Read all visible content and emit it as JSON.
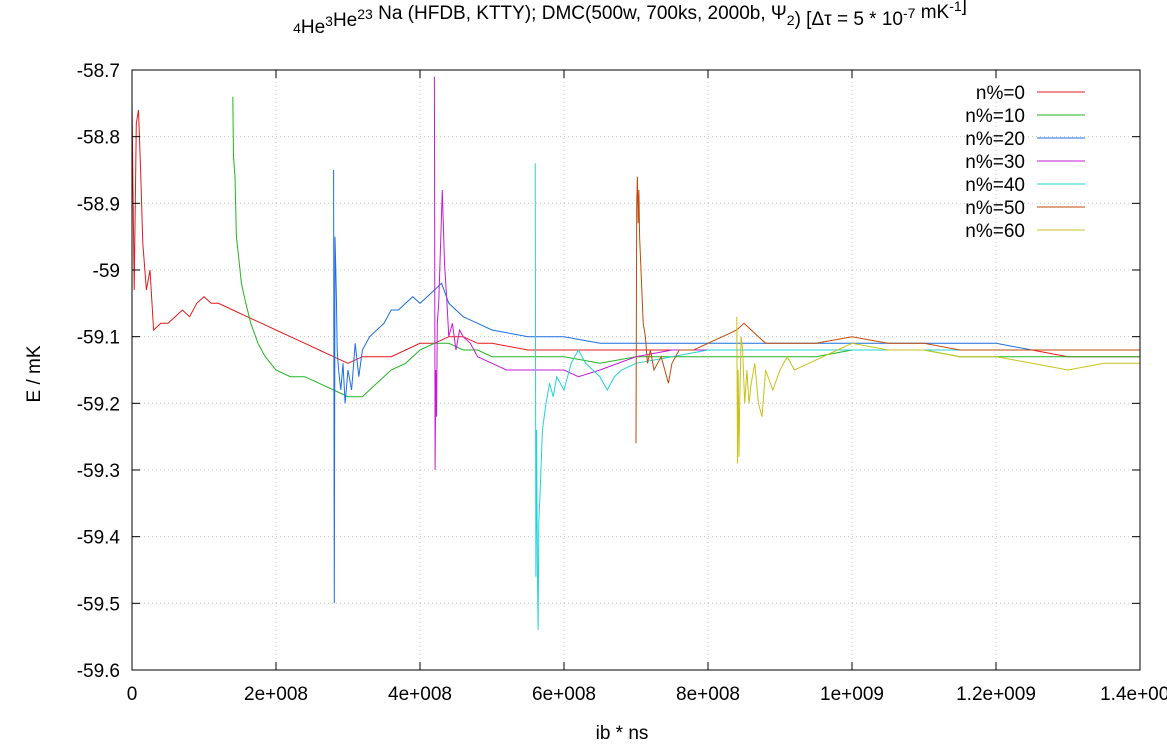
{
  "chart_data": {
    "type": "line",
    "title": {
      "parts": [
        {
          "text": "4",
          "sup": true
        },
        {
          "text": "He"
        },
        {
          "text": "3",
          "sup": true
        },
        {
          "text": "He"
        },
        {
          "text": "23",
          "sup": true
        },
        {
          "text": " Na (HFDB, KTTY); DMC(500w, 700ks, 2000b, Ψ"
        },
        {
          "text": "2",
          "sub": true
        },
        {
          "text": ") [Δτ = 5 * 10"
        },
        {
          "text": "-7",
          "sup": true
        },
        {
          "text": " mK"
        },
        {
          "text": "-1",
          "sup": true
        },
        {
          "text": "]"
        }
      ]
    },
    "xlabel": "ib * ns",
    "ylabel": "E / mK",
    "xlim": [
      0,
      1400000000
    ],
    "ylim": [
      -59.6,
      -58.7
    ],
    "xticks": [
      {
        "value": 0,
        "label": "0"
      },
      {
        "value": 200000000,
        "label": "2e+008"
      },
      {
        "value": 400000000,
        "label": "4e+008"
      },
      {
        "value": 600000000,
        "label": "6e+008"
      },
      {
        "value": 800000000,
        "label": "8e+008"
      },
      {
        "value": 1000000000,
        "label": "1e+009"
      },
      {
        "value": 1200000000,
        "label": "1.2e+009"
      },
      {
        "value": 1400000000,
        "label": "1.4e+009"
      }
    ],
    "yticks": [
      {
        "value": -59.6,
        "label": "-59.6"
      },
      {
        "value": -59.5,
        "label": "-59.5"
      },
      {
        "value": -59.4,
        "label": "-59.4"
      },
      {
        "value": -59.3,
        "label": "-59.3"
      },
      {
        "value": -59.2,
        "label": "-59.2"
      },
      {
        "value": -59.1,
        "label": "-59.1"
      },
      {
        "value": -59.0,
        "label": "-59"
      },
      {
        "value": -58.9,
        "label": "-58.9"
      },
      {
        "value": -58.8,
        "label": "-58.8"
      },
      {
        "value": -58.7,
        "label": "-58.7"
      }
    ],
    "grid": true,
    "legend_position": "top-right",
    "series": [
      {
        "name": "n%=0",
        "color": "#e41a1c",
        "x": [
          0,
          3000000,
          6000000,
          9000000,
          12000000,
          15000000,
          20000000,
          25000000,
          30000000,
          40000000,
          50000000,
          60000000,
          70000000,
          80000000,
          90000000,
          100000000,
          110000000,
          120000000,
          140000000,
          160000000,
          180000000,
          200000000,
          220000000,
          240000000,
          260000000,
          280000000,
          300000000,
          320000000,
          340000000,
          360000000,
          380000000,
          400000000,
          420000000,
          440000000,
          460000000,
          480000000,
          500000000,
          550000000,
          600000000,
          650000000,
          700000000,
          750000000,
          800000000,
          850000000,
          900000000,
          950000000,
          1000000000,
          1050000000,
          1100000000,
          1150000000,
          1200000000,
          1250000000,
          1300000000,
          1350000000,
          1400000000
        ],
        "y": [
          -58.75,
          -59.03,
          -58.78,
          -58.76,
          -58.85,
          -58.96,
          -59.03,
          -59.0,
          -59.09,
          -59.08,
          -59.08,
          -59.07,
          -59.06,
          -59.07,
          -59.05,
          -59.04,
          -59.05,
          -59.05,
          -59.06,
          -59.07,
          -59.08,
          -59.09,
          -59.1,
          -59.11,
          -59.12,
          -59.13,
          -59.14,
          -59.13,
          -59.13,
          -59.13,
          -59.12,
          -59.11,
          -59.11,
          -59.1,
          -59.1,
          -59.11,
          -59.11,
          -59.12,
          -59.12,
          -59.12,
          -59.12,
          -59.12,
          -59.12,
          -59.12,
          -59.12,
          -59.12,
          -59.12,
          -59.12,
          -59.12,
          -59.12,
          -59.12,
          -59.12,
          -59.13,
          -59.13,
          -59.13
        ]
      },
      {
        "name": "n%=10",
        "color": "#22b522",
        "x": [
          140000000,
          141000000,
          143000000,
          145000000,
          148000000,
          152000000,
          158000000,
          165000000,
          175000000,
          185000000,
          200000000,
          220000000,
          240000000,
          260000000,
          280000000,
          300000000,
          320000000,
          340000000,
          360000000,
          380000000,
          400000000,
          420000000,
          440000000,
          460000000,
          480000000,
          500000000,
          550000000,
          600000000,
          650000000,
          700000000,
          750000000,
          800000000,
          850000000,
          900000000,
          950000000,
          1000000000,
          1050000000,
          1100000000,
          1150000000,
          1200000000,
          1250000000,
          1300000000,
          1350000000,
          1400000000
        ],
        "y": [
          -58.74,
          -58.83,
          -58.86,
          -58.95,
          -58.98,
          -59.02,
          -59.05,
          -59.08,
          -59.11,
          -59.13,
          -59.15,
          -59.16,
          -59.16,
          -59.17,
          -59.18,
          -59.19,
          -59.19,
          -59.17,
          -59.15,
          -59.14,
          -59.12,
          -59.11,
          -59.11,
          -59.12,
          -59.12,
          -59.13,
          -59.13,
          -59.13,
          -59.14,
          -59.13,
          -59.13,
          -59.13,
          -59.13,
          -59.13,
          -59.13,
          -59.12,
          -59.12,
          -59.12,
          -59.13,
          -59.13,
          -59.13,
          -59.13,
          -59.13,
          -59.13
        ]
      },
      {
        "name": "n%=20",
        "color": "#1c6fe0",
        "x": [
          280000000,
          281000000,
          282000000,
          283000000,
          284000000,
          285000000,
          287000000,
          290000000,
          293000000,
          296000000,
          300000000,
          305000000,
          310000000,
          315000000,
          320000000,
          330000000,
          340000000,
          350000000,
          360000000,
          370000000,
          380000000,
          390000000,
          400000000,
          410000000,
          420000000,
          430000000,
          440000000,
          460000000,
          480000000,
          500000000,
          550000000,
          600000000,
          650000000,
          700000000,
          750000000,
          800000000,
          850000000,
          900000000,
          950000000,
          1000000000,
          1050000000,
          1100000000,
          1150000000,
          1200000000,
          1250000000,
          1300000000,
          1350000000,
          1400000000
        ],
        "y": [
          -58.85,
          -59.5,
          -58.95,
          -59.0,
          -59.05,
          -59.12,
          -59.15,
          -59.18,
          -59.14,
          -59.2,
          -59.15,
          -59.18,
          -59.11,
          -59.16,
          -59.12,
          -59.1,
          -59.09,
          -59.08,
          -59.06,
          -59.06,
          -59.05,
          -59.04,
          -59.05,
          -59.04,
          -59.03,
          -59.02,
          -59.05,
          -59.07,
          -59.08,
          -59.09,
          -59.1,
          -59.1,
          -59.11,
          -59.11,
          -59.11,
          -59.11,
          -59.11,
          -59.11,
          -59.11,
          -59.11,
          -59.11,
          -59.11,
          -59.11,
          -59.11,
          -59.12,
          -59.12,
          -59.12,
          -59.12
        ]
      },
      {
        "name": "n%=30",
        "color": "#c51bd6",
        "x": [
          420000000,
          421000000,
          422000000,
          423000000,
          424000000,
          426000000,
          428000000,
          431000000,
          434000000,
          437000000,
          440000000,
          445000000,
          450000000,
          455000000,
          460000000,
          470000000,
          480000000,
          500000000,
          520000000,
          540000000,
          560000000,
          580000000,
          600000000,
          620000000,
          650000000,
          700000000,
          750000000,
          800000000,
          850000000,
          900000000,
          950000000,
          1000000000,
          1050000000,
          1100000000,
          1150000000,
          1200000000,
          1250000000,
          1300000000,
          1350000000,
          1400000000
        ],
        "y": [
          -58.71,
          -59.3,
          -59.15,
          -59.22,
          -59.08,
          -59.05,
          -58.98,
          -58.88,
          -58.99,
          -59.04,
          -59.1,
          -59.08,
          -59.12,
          -59.09,
          -59.1,
          -59.11,
          -59.13,
          -59.14,
          -59.15,
          -59.15,
          -59.15,
          -59.15,
          -59.15,
          -59.16,
          -59.15,
          -59.13,
          -59.12,
          -59.12,
          -59.12,
          -59.12,
          -59.12,
          -59.12,
          -59.12,
          -59.12,
          -59.12,
          -59.12,
          -59.12,
          -59.12,
          -59.12,
          -59.12
        ]
      },
      {
        "name": "n%=40",
        "color": "#22d3d6",
        "x": [
          560000000,
          561000000,
          562000000,
          563000000,
          564000000,
          565000000,
          567000000,
          570000000,
          575000000,
          580000000,
          585000000,
          590000000,
          600000000,
          610000000,
          620000000,
          630000000,
          640000000,
          650000000,
          660000000,
          670000000,
          680000000,
          700000000,
          750000000,
          800000000,
          850000000,
          900000000,
          950000000,
          1000000000,
          1050000000,
          1100000000,
          1150000000,
          1200000000,
          1250000000,
          1300000000,
          1350000000,
          1400000000
        ],
        "y": [
          -58.84,
          -59.46,
          -59.24,
          -59.45,
          -59.54,
          -59.38,
          -59.33,
          -59.24,
          -59.2,
          -59.17,
          -59.19,
          -59.16,
          -59.18,
          -59.14,
          -59.12,
          -59.14,
          -59.15,
          -59.16,
          -59.18,
          -59.16,
          -59.15,
          -59.14,
          -59.13,
          -59.12,
          -59.12,
          -59.12,
          -59.12,
          -59.12,
          -59.12,
          -59.12,
          -59.12,
          -59.12,
          -59.12,
          -59.12,
          -59.12,
          -59.12
        ]
      },
      {
        "name": "n%=50",
        "color": "#c04a0a",
        "x": [
          700000000,
          701000000,
          702000000,
          703000000,
          704000000,
          705000000,
          707000000,
          710000000,
          713000000,
          716000000,
          720000000,
          725000000,
          730000000,
          735000000,
          740000000,
          745000000,
          750000000,
          760000000,
          770000000,
          780000000,
          800000000,
          820000000,
          840000000,
          850000000,
          860000000,
          880000000,
          900000000,
          950000000,
          1000000000,
          1050000000,
          1100000000,
          1150000000,
          1200000000,
          1250000000,
          1300000000,
          1350000000,
          1400000000
        ],
        "y": [
          -59.26,
          -58.9,
          -58.86,
          -58.93,
          -58.88,
          -58.95,
          -59.0,
          -59.08,
          -59.1,
          -59.14,
          -59.12,
          -59.15,
          -59.14,
          -59.13,
          -59.15,
          -59.17,
          -59.14,
          -59.12,
          -59.12,
          -59.12,
          -59.11,
          -59.1,
          -59.09,
          -59.08,
          -59.09,
          -59.11,
          -59.11,
          -59.11,
          -59.1,
          -59.11,
          -59.11,
          -59.12,
          -59.12,
          -59.12,
          -59.12,
          -59.12,
          -59.12
        ]
      },
      {
        "name": "n%=60",
        "color": "#c8c21a",
        "x": [
          840000000,
          841000000,
          842000000,
          843000000,
          844000000,
          846000000,
          848000000,
          851000000,
          854000000,
          857000000,
          860000000,
          865000000,
          870000000,
          875000000,
          880000000,
          890000000,
          900000000,
          910000000,
          920000000,
          940000000,
          960000000,
          980000000,
          1000000000,
          1050000000,
          1100000000,
          1150000000,
          1200000000,
          1250000000,
          1300000000,
          1350000000,
          1400000000
        ],
        "y": [
          -59.07,
          -59.29,
          -59.15,
          -59.28,
          -59.2,
          -59.1,
          -59.12,
          -59.2,
          -59.15,
          -59.2,
          -59.17,
          -59.14,
          -59.2,
          -59.22,
          -59.15,
          -59.18,
          -59.15,
          -59.13,
          -59.15,
          -59.14,
          -59.13,
          -59.12,
          -59.11,
          -59.12,
          -59.12,
          -59.13,
          -59.13,
          -59.14,
          -59.15,
          -59.14,
          -59.14
        ]
      }
    ]
  }
}
